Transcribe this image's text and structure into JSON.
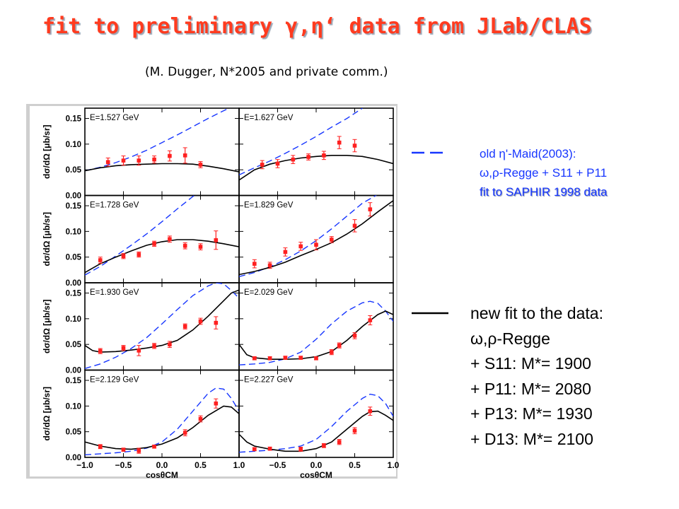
{
  "header": {
    "title": "fit to preliminary γ,η‘ data from JLab/CLAS",
    "subtitle": "(M. Dugger, N*2005 and private comm.)"
  },
  "colors": {
    "title": "#ff3b1f",
    "old_model": "#1736ff",
    "new_fit": "#000000",
    "data": "#ff2020"
  },
  "legend": {
    "old": {
      "line1": "old η'-Maid(2003):",
      "line2": "ω,ρ-Regge + S11 + P11",
      "line3": "fit to SAPHIR 1998 data"
    },
    "new": {
      "line1": "new fit to the data:",
      "line2": "ω,ρ-Regge",
      "line3": "+ S11:  M*= 1900",
      "line4": "+ P11:  M*= 2080",
      "line5": "+ P13:  M*= 1930",
      "line6": "+ D13:  M*= 2100"
    }
  },
  "chart_data": {
    "type": "scatter",
    "grid": false,
    "xlabel": "cosθCM",
    "ylabel": "dσ/dΩ [μb/sr]",
    "xlim": [
      -1.0,
      1.0
    ],
    "ylim": [
      0.0,
      0.17
    ],
    "x_ticks": [
      "−1.0",
      "−0.5",
      "0.0",
      "0.5",
      "1.0"
    ],
    "y_ticks": [
      "0.00",
      "0.05",
      "0.10",
      "0.15"
    ],
    "panels": [
      {
        "label": "E=1.527 GeV",
        "points": [
          [
            -0.7,
            0.065,
            0.008
          ],
          [
            -0.5,
            0.068,
            0.009
          ],
          [
            -0.3,
            0.068,
            0.009
          ],
          [
            -0.1,
            0.07,
            0.007
          ],
          [
            0.1,
            0.077,
            0.01
          ],
          [
            0.3,
            0.078,
            0.015
          ],
          [
            0.5,
            0.06,
            0.006
          ]
        ],
        "old_model": [
          [
            -1.0,
            0.048
          ],
          [
            -0.8,
            0.055
          ],
          [
            -0.6,
            0.064
          ],
          [
            -0.4,
            0.075
          ],
          [
            -0.2,
            0.088
          ],
          [
            0.0,
            0.103
          ],
          [
            0.2,
            0.118
          ],
          [
            0.4,
            0.134
          ],
          [
            0.6,
            0.15
          ],
          [
            0.8,
            0.165
          ],
          [
            0.9,
            0.172
          ]
        ],
        "new_fit": [
          [
            -1.0,
            0.048
          ],
          [
            -0.8,
            0.054
          ],
          [
            -0.6,
            0.058
          ],
          [
            -0.4,
            0.06
          ],
          [
            -0.2,
            0.061
          ],
          [
            0.0,
            0.062
          ],
          [
            0.2,
            0.062
          ],
          [
            0.4,
            0.061
          ],
          [
            0.6,
            0.057
          ],
          [
            0.8,
            0.052
          ],
          [
            1.0,
            0.046
          ]
        ]
      },
      {
        "label": "E=1.627 GeV",
        "points": [
          [
            -0.7,
            0.06,
            0.008
          ],
          [
            -0.5,
            0.062,
            0.008
          ],
          [
            -0.3,
            0.07,
            0.008
          ],
          [
            -0.1,
            0.075,
            0.006
          ],
          [
            0.1,
            0.078,
            0.008
          ],
          [
            0.3,
            0.103,
            0.012
          ],
          [
            0.5,
            0.097,
            0.012
          ]
        ],
        "old_model": [
          [
            -1.0,
            0.04
          ],
          [
            -0.8,
            0.054
          ],
          [
            -0.6,
            0.067
          ],
          [
            -0.4,
            0.082
          ],
          [
            -0.2,
            0.098
          ],
          [
            0.0,
            0.115
          ],
          [
            0.2,
            0.133
          ],
          [
            0.4,
            0.15
          ],
          [
            0.5,
            0.16
          ],
          [
            0.6,
            0.17
          ]
        ],
        "new_fit": [
          [
            -1.0,
            0.03
          ],
          [
            -0.8,
            0.05
          ],
          [
            -0.6,
            0.061
          ],
          [
            -0.4,
            0.068
          ],
          [
            -0.2,
            0.073
          ],
          [
            0.0,
            0.076
          ],
          [
            0.2,
            0.078
          ],
          [
            0.4,
            0.078
          ],
          [
            0.6,
            0.076
          ],
          [
            0.8,
            0.07
          ],
          [
            1.0,
            0.062
          ]
        ]
      },
      {
        "label": "E=1.728 GeV",
        "points": [
          [
            -0.8,
            0.044,
            0.006
          ],
          [
            -0.5,
            0.052,
            0.005
          ],
          [
            -0.3,
            0.055,
            0.005
          ],
          [
            -0.1,
            0.076,
            0.005
          ],
          [
            0.1,
            0.085,
            0.006
          ],
          [
            0.3,
            0.072,
            0.006
          ],
          [
            0.5,
            0.07,
            0.006
          ],
          [
            0.7,
            0.083,
            0.018
          ]
        ],
        "old_model": [
          [
            -1.0,
            0.015
          ],
          [
            -0.8,
            0.032
          ],
          [
            -0.6,
            0.052
          ],
          [
            -0.4,
            0.073
          ],
          [
            -0.2,
            0.095
          ],
          [
            0.0,
            0.119
          ],
          [
            0.2,
            0.144
          ],
          [
            0.4,
            0.168
          ],
          [
            0.45,
            0.172
          ]
        ],
        "new_fit": [
          [
            -1.0,
            0.02
          ],
          [
            -0.8,
            0.037
          ],
          [
            -0.6,
            0.05
          ],
          [
            -0.4,
            0.062
          ],
          [
            -0.2,
            0.073
          ],
          [
            0.0,
            0.08
          ],
          [
            0.2,
            0.084
          ],
          [
            0.4,
            0.084
          ],
          [
            0.6,
            0.081
          ],
          [
            0.8,
            0.076
          ],
          [
            1.0,
            0.07
          ]
        ]
      },
      {
        "label": "E=1.829 GeV",
        "points": [
          [
            -0.8,
            0.037,
            0.008
          ],
          [
            -0.6,
            0.034,
            0.006
          ],
          [
            -0.4,
            0.06,
            0.008
          ],
          [
            -0.2,
            0.071,
            0.008
          ],
          [
            0.0,
            0.074,
            0.01
          ],
          [
            0.2,
            0.084,
            0.006
          ],
          [
            0.5,
            0.111,
            0.012
          ],
          [
            0.7,
            0.143,
            0.013
          ]
        ],
        "old_model": [
          [
            -1.0,
            0.012
          ],
          [
            -0.8,
            0.02
          ],
          [
            -0.6,
            0.031
          ],
          [
            -0.4,
            0.045
          ],
          [
            -0.2,
            0.062
          ],
          [
            0.0,
            0.082
          ],
          [
            0.2,
            0.105
          ],
          [
            0.4,
            0.13
          ],
          [
            0.6,
            0.155
          ],
          [
            0.8,
            0.172
          ]
        ],
        "new_fit": [
          [
            -1.0,
            0.016
          ],
          [
            -0.8,
            0.022
          ],
          [
            -0.6,
            0.03
          ],
          [
            -0.4,
            0.04
          ],
          [
            -0.2,
            0.053
          ],
          [
            0.0,
            0.065
          ],
          [
            0.2,
            0.078
          ],
          [
            0.4,
            0.095
          ],
          [
            0.6,
            0.115
          ],
          [
            0.8,
            0.138
          ],
          [
            1.0,
            0.16
          ]
        ]
      },
      {
        "label": "E=1.930 GeV",
        "points": [
          [
            -0.8,
            0.037,
            0.005
          ],
          [
            -0.5,
            0.043,
            0.005
          ],
          [
            -0.3,
            0.038,
            0.01
          ],
          [
            -0.1,
            0.047,
            0.005
          ],
          [
            0.1,
            0.05,
            0.006
          ],
          [
            0.3,
            0.085,
            0.005
          ],
          [
            0.5,
            0.095,
            0.006
          ],
          [
            0.7,
            0.092,
            0.012
          ]
        ],
        "old_model": [
          [
            -1.0,
            0.003
          ],
          [
            -0.8,
            0.012
          ],
          [
            -0.6,
            0.025
          ],
          [
            -0.4,
            0.042
          ],
          [
            -0.2,
            0.063
          ],
          [
            0.0,
            0.09
          ],
          [
            0.2,
            0.118
          ],
          [
            0.4,
            0.145
          ],
          [
            0.6,
            0.164
          ],
          [
            0.7,
            0.17
          ],
          [
            0.8,
            0.168
          ],
          [
            0.9,
            0.155
          ],
          [
            1.0,
            0.14
          ]
        ],
        "new_fit": [
          [
            -1.0,
            0.048
          ],
          [
            -0.9,
            0.038
          ],
          [
            -0.8,
            0.035
          ],
          [
            -0.6,
            0.036
          ],
          [
            -0.4,
            0.039
          ],
          [
            -0.2,
            0.043
          ],
          [
            0.0,
            0.048
          ],
          [
            0.2,
            0.058
          ],
          [
            0.4,
            0.078
          ],
          [
            0.6,
            0.105
          ],
          [
            0.8,
            0.135
          ],
          [
            0.9,
            0.15
          ],
          [
            1.0,
            0.156
          ]
        ]
      },
      {
        "label": "E=2.029 GeV",
        "points": [
          [
            -0.8,
            0.023,
            0.003
          ],
          [
            -0.6,
            0.023,
            0.003
          ],
          [
            -0.4,
            0.024,
            0.003
          ],
          [
            -0.2,
            0.024,
            0.003
          ],
          [
            0.0,
            0.023,
            0.003
          ],
          [
            0.2,
            0.035,
            0.005
          ],
          [
            0.3,
            0.048,
            0.005
          ],
          [
            0.5,
            0.067,
            0.006
          ],
          [
            0.7,
            0.097,
            0.009
          ]
        ],
        "old_model": [
          [
            -1.0,
            0.01
          ],
          [
            -0.8,
            0.012
          ],
          [
            -0.6,
            0.015
          ],
          [
            -0.4,
            0.022
          ],
          [
            -0.2,
            0.035
          ],
          [
            0.0,
            0.06
          ],
          [
            0.2,
            0.09
          ],
          [
            0.4,
            0.115
          ],
          [
            0.6,
            0.131
          ],
          [
            0.7,
            0.134
          ],
          [
            0.8,
            0.13
          ],
          [
            0.9,
            0.115
          ],
          [
            1.0,
            0.095
          ]
        ],
        "new_fit": [
          [
            -1.0,
            0.05
          ],
          [
            -0.9,
            0.03
          ],
          [
            -0.8,
            0.024
          ],
          [
            -0.6,
            0.021
          ],
          [
            -0.4,
            0.021
          ],
          [
            -0.2,
            0.022
          ],
          [
            0.0,
            0.026
          ],
          [
            0.2,
            0.036
          ],
          [
            0.4,
            0.058
          ],
          [
            0.6,
            0.085
          ],
          [
            0.8,
            0.108
          ],
          [
            0.9,
            0.115
          ],
          [
            1.0,
            0.108
          ]
        ]
      },
      {
        "label": "E=2.129 GeV",
        "points": [
          [
            -0.8,
            0.021,
            0.004
          ],
          [
            -0.5,
            0.015,
            0.003
          ],
          [
            -0.3,
            0.013,
            0.005
          ],
          [
            -0.1,
            0.021,
            0.003
          ],
          [
            0.3,
            0.048,
            0.006
          ],
          [
            0.5,
            0.075,
            0.006
          ],
          [
            0.7,
            0.105,
            0.009
          ]
        ],
        "old_model": [
          [
            -1.0,
            0.005
          ],
          [
            -0.8,
            0.007
          ],
          [
            -0.6,
            0.009
          ],
          [
            -0.4,
            0.012
          ],
          [
            -0.2,
            0.018
          ],
          [
            0.0,
            0.03
          ],
          [
            0.2,
            0.055
          ],
          [
            0.4,
            0.09
          ],
          [
            0.6,
            0.125
          ],
          [
            0.7,
            0.135
          ],
          [
            0.8,
            0.133
          ],
          [
            0.9,
            0.115
          ],
          [
            1.0,
            0.09
          ]
        ],
        "new_fit": [
          [
            -1.0,
            0.03
          ],
          [
            -0.8,
            0.022
          ],
          [
            -0.6,
            0.017
          ],
          [
            -0.4,
            0.016
          ],
          [
            -0.2,
            0.019
          ],
          [
            0.0,
            0.026
          ],
          [
            0.2,
            0.038
          ],
          [
            0.4,
            0.058
          ],
          [
            0.6,
            0.082
          ],
          [
            0.8,
            0.1
          ],
          [
            0.9,
            0.098
          ],
          [
            1.0,
            0.085
          ]
        ]
      },
      {
        "label": "E=2.227 GeV",
        "points": [
          [
            -0.8,
            0.016,
            0.003
          ],
          [
            -0.6,
            0.017,
            0.003
          ],
          [
            -0.2,
            0.016,
            0.004
          ],
          [
            0.1,
            0.023,
            0.004
          ],
          [
            0.3,
            0.03,
            0.005
          ],
          [
            0.5,
            0.052,
            0.006
          ],
          [
            0.7,
            0.09,
            0.008
          ]
        ],
        "old_model": [
          [
            -1.0,
            0.01
          ],
          [
            -0.8,
            0.012
          ],
          [
            -0.6,
            0.014
          ],
          [
            -0.4,
            0.017
          ],
          [
            -0.2,
            0.022
          ],
          [
            0.0,
            0.035
          ],
          [
            0.2,
            0.06
          ],
          [
            0.4,
            0.09
          ],
          [
            0.6,
            0.115
          ],
          [
            0.7,
            0.123
          ],
          [
            0.8,
            0.12
          ],
          [
            0.9,
            0.105
          ],
          [
            1.0,
            0.08
          ]
        ],
        "new_fit": [
          [
            -1.0,
            0.045
          ],
          [
            -0.9,
            0.03
          ],
          [
            -0.8,
            0.022
          ],
          [
            -0.6,
            0.016
          ],
          [
            -0.4,
            0.012
          ],
          [
            -0.2,
            0.012
          ],
          [
            0.0,
            0.017
          ],
          [
            0.2,
            0.03
          ],
          [
            0.4,
            0.055
          ],
          [
            0.6,
            0.08
          ],
          [
            0.7,
            0.089
          ],
          [
            0.8,
            0.09
          ],
          [
            0.9,
            0.082
          ],
          [
            1.0,
            0.072
          ]
        ]
      }
    ]
  }
}
